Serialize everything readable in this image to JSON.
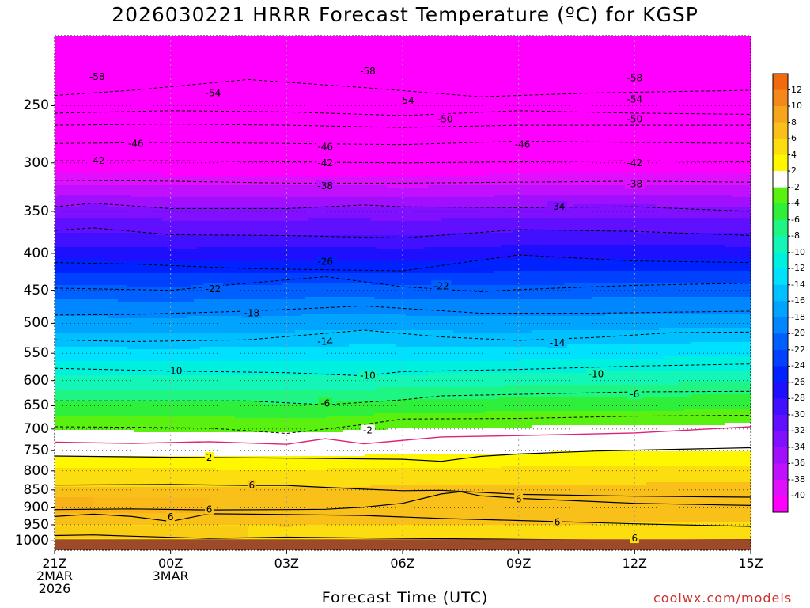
{
  "title": "2026030221 HRRR Forecast Temperature (ºC) for KGSP",
  "xlabel": "Forecast Time (UTC)",
  "credit": "coolwx.com/models",
  "colors": {
    "ground": "#9c4a2a",
    "contour": "#000000",
    "freezing_line": "#e0207a"
  },
  "chart_data": {
    "type": "heatmap",
    "x_ticks": [
      {
        "lines": [
          "21Z",
          "2MAR",
          "2026"
        ]
      },
      {
        "lines": [
          "00Z",
          "3MAR"
        ]
      },
      {
        "lines": [
          "03Z"
        ]
      },
      {
        "lines": [
          "06Z"
        ]
      },
      {
        "lines": [
          "09Z"
        ]
      },
      {
        "lines": [
          "12Z"
        ]
      },
      {
        "lines": [
          "15Z"
        ]
      }
    ],
    "x_hours": [
      0,
      3,
      6,
      9,
      12,
      15,
      18
    ],
    "y_ticks": [
      250,
      300,
      350,
      400,
      450,
      500,
      550,
      600,
      650,
      700,
      750,
      800,
      850,
      900,
      950,
      1000
    ],
    "y_range_hpa": [
      200,
      1030
    ],
    "surface_pressure_hpa": 995,
    "colorbar_labels": [
      "12",
      "10",
      "8",
      "6",
      "4",
      "2",
      "-2",
      "-4",
      "-6",
      "-8",
      "-10",
      "-12",
      "-14",
      "-16",
      "-18",
      "-20",
      "-22",
      "-24",
      "-26",
      "-28",
      "-30",
      "-32",
      "-34",
      "-36",
      "-38",
      "-40"
    ],
    "color_levels": [
      {
        "min": 12,
        "color": "#f26a10"
      },
      {
        "min": 10,
        "color": "#f5881a"
      },
      {
        "min": 8,
        "color": "#f7a51a"
      },
      {
        "min": 6,
        "color": "#f9c01a"
      },
      {
        "min": 4,
        "color": "#fbdd10"
      },
      {
        "min": 2,
        "color": "#fff700"
      },
      {
        "min": -2,
        "color": "#ffffff"
      },
      {
        "min": -4,
        "color": "#5af010"
      },
      {
        "min": -6,
        "color": "#2ef03a"
      },
      {
        "min": -8,
        "color": "#1ef582"
      },
      {
        "min": -10,
        "color": "#14f5b8"
      },
      {
        "min": -12,
        "color": "#00f0e0"
      },
      {
        "min": -14,
        "color": "#00e0ff"
      },
      {
        "min": -16,
        "color": "#00c0ff"
      },
      {
        "min": -18,
        "color": "#00a4ff"
      },
      {
        "min": -20,
        "color": "#0086ff"
      },
      {
        "min": -22,
        "color": "#0060ff"
      },
      {
        "min": -24,
        "color": "#0040ff"
      },
      {
        "min": -26,
        "color": "#0022ff"
      },
      {
        "min": -28,
        "color": "#1e10ff"
      },
      {
        "min": -30,
        "color": "#4010ff"
      },
      {
        "min": -32,
        "color": "#6010ff"
      },
      {
        "min": -34,
        "color": "#8010ff"
      },
      {
        "min": -36,
        "color": "#a010ff"
      },
      {
        "min": -38,
        "color": "#c010ff"
      },
      {
        "min": -40,
        "color": "#e010ff"
      },
      {
        "min": -999,
        "color": "#ff00ff"
      }
    ],
    "contours": [
      {
        "value": -58,
        "points": [
          [
            0,
            242
          ],
          [
            2,
            238
          ],
          [
            5,
            230
          ],
          [
            8,
            236
          ],
          [
            11,
            243
          ],
          [
            14,
            240
          ],
          [
            18,
            238
          ]
        ]
      },
      {
        "value": -54,
        "points": [
          [
            0,
            256
          ],
          [
            3,
            254
          ],
          [
            6,
            255
          ],
          [
            9,
            258
          ],
          [
            12,
            254
          ],
          [
            15,
            256
          ],
          [
            18,
            257
          ]
        ]
      },
      {
        "value": -50,
        "points": [
          [
            0,
            266
          ],
          [
            3,
            265
          ],
          [
            6,
            266
          ],
          [
            9,
            268
          ],
          [
            12,
            266
          ],
          [
            15,
            266
          ],
          [
            18,
            266
          ]
        ]
      },
      {
        "value": -46,
        "points": [
          [
            0,
            282
          ],
          [
            3,
            281
          ],
          [
            6,
            282
          ],
          [
            9,
            283
          ],
          [
            12,
            280
          ],
          [
            15,
            281
          ],
          [
            18,
            282
          ]
        ]
      },
      {
        "value": -42,
        "points": [
          [
            0,
            298
          ],
          [
            3,
            298
          ],
          [
            6,
            299
          ],
          [
            9,
            300
          ],
          [
            12,
            299
          ],
          [
            15,
            298
          ],
          [
            18,
            299
          ]
        ]
      },
      {
        "value": -38,
        "points": [
          [
            0,
            317
          ],
          [
            3,
            318
          ],
          [
            6,
            320
          ],
          [
            9,
            320
          ],
          [
            12,
            319
          ],
          [
            15,
            318
          ],
          [
            18,
            319
          ]
        ]
      },
      {
        "value": -34,
        "points": [
          [
            0,
            345
          ],
          [
            1,
            341
          ],
          [
            3,
            347
          ],
          [
            6,
            347
          ],
          [
            8,
            343
          ],
          [
            9,
            345
          ],
          [
            12,
            346
          ],
          [
            15,
            345
          ],
          [
            18,
            350
          ]
        ]
      },
      {
        "value": -30,
        "points": [
          [
            0,
            372
          ],
          [
            1,
            369
          ],
          [
            3,
            377
          ],
          [
            6,
            378
          ],
          [
            9,
            381
          ],
          [
            12,
            371
          ],
          [
            15,
            373
          ],
          [
            18,
            378
          ]
        ]
      },
      {
        "value": -26,
        "points": [
          [
            0,
            412
          ],
          [
            2,
            414
          ],
          [
            5,
            420
          ],
          [
            9,
            423
          ],
          [
            12,
            402
          ],
          [
            15,
            410
          ],
          [
            18,
            412
          ]
        ]
      },
      {
        "value": -22,
        "points": [
          [
            0,
            447
          ],
          [
            3,
            450
          ],
          [
            5,
            440
          ],
          [
            7,
            431
          ],
          [
            9,
            445
          ],
          [
            11,
            452
          ],
          [
            12,
            449
          ],
          [
            15,
            443
          ],
          [
            18,
            440
          ]
        ]
      },
      {
        "value": -18,
        "points": [
          [
            0,
            487
          ],
          [
            2,
            486
          ],
          [
            5,
            481
          ],
          [
            8,
            473
          ],
          [
            11,
            484
          ],
          [
            14,
            484
          ],
          [
            18,
            481
          ]
        ]
      },
      {
        "value": -14,
        "points": [
          [
            0,
            527
          ],
          [
            2,
            530
          ],
          [
            5,
            527
          ],
          [
            8,
            511
          ],
          [
            10,
            522
          ],
          [
            12,
            528
          ],
          [
            14,
            523
          ],
          [
            16,
            515
          ],
          [
            18,
            514
          ]
        ]
      },
      {
        "value": -10,
        "points": [
          [
            0,
            577
          ],
          [
            3,
            582
          ],
          [
            6,
            585
          ],
          [
            8,
            591
          ],
          [
            9,
            583
          ],
          [
            12,
            579
          ],
          [
            15,
            573
          ],
          [
            18,
            569
          ]
        ]
      },
      {
        "value": -6,
        "points": [
          [
            0,
            640
          ],
          [
            3,
            640
          ],
          [
            5,
            640
          ],
          [
            7,
            648
          ],
          [
            9,
            638
          ],
          [
            10,
            630
          ],
          [
            12,
            627
          ],
          [
            15,
            622
          ],
          [
            18,
            621
          ]
        ]
      },
      {
        "value": -2,
        "points": [
          [
            0,
            695
          ],
          [
            2,
            696
          ],
          [
            4,
            698
          ],
          [
            6,
            710
          ],
          [
            8,
            690
          ],
          [
            9,
            678
          ],
          [
            12,
            677
          ],
          [
            15,
            672
          ],
          [
            18,
            670
          ]
        ]
      }
    ],
    "dashed_labels": [
      {
        "value": "-58",
        "x": 1.1,
        "p": 228
      },
      {
        "value": "-58",
        "x": 8.1,
        "p": 224
      },
      {
        "value": "-58",
        "x": 15.0,
        "p": 229
      },
      {
        "value": "-54",
        "x": 4.1,
        "p": 240
      },
      {
        "value": "-54",
        "x": 9.1,
        "p": 246
      },
      {
        "value": "-54",
        "x": 15.0,
        "p": 245
      },
      {
        "value": "-50",
        "x": 10.1,
        "p": 261
      },
      {
        "value": "-50",
        "x": 15.0,
        "p": 261
      },
      {
        "value": "-46",
        "x": 2.1,
        "p": 282
      },
      {
        "value": "-46",
        "x": 7.0,
        "p": 285
      },
      {
        "value": "-46",
        "x": 12.1,
        "p": 283
      },
      {
        "value": "-42",
        "x": 1.1,
        "p": 298
      },
      {
        "value": "-42",
        "x": 7.0,
        "p": 300
      },
      {
        "value": "-42",
        "x": 15.0,
        "p": 300
      },
      {
        "value": "-38",
        "x": 7.0,
        "p": 323
      },
      {
        "value": "-38",
        "x": 15.0,
        "p": 321
      },
      {
        "value": "-34",
        "x": 13.0,
        "p": 345
      },
      {
        "value": "-26",
        "x": 7.0,
        "p": 411
      },
      {
        "value": "-22",
        "x": 4.1,
        "p": 448
      },
      {
        "value": "-22",
        "x": 10.0,
        "p": 444
      },
      {
        "value": "-18",
        "x": 5.1,
        "p": 484
      },
      {
        "value": "-14",
        "x": 7.0,
        "p": 530
      },
      {
        "value": "-14",
        "x": 13.0,
        "p": 532
      },
      {
        "value": "-10",
        "x": 3.1,
        "p": 582
      },
      {
        "value": "-10",
        "x": 8.1,
        "p": 591
      },
      {
        "value": "-10",
        "x": 14.0,
        "p": 588
      },
      {
        "value": "-6",
        "x": 7.0,
        "p": 645
      },
      {
        "value": "-6",
        "x": 15.0,
        "p": 627
      },
      {
        "value": "-2",
        "x": 8.1,
        "p": 703
      }
    ],
    "solid_contours": [
      {
        "value": 2,
        "points": [
          [
            0,
            763
          ],
          [
            3,
            766
          ],
          [
            6,
            768
          ],
          [
            9,
            771
          ],
          [
            10,
            776
          ],
          [
            11,
            764
          ],
          [
            12,
            758
          ],
          [
            14,
            751
          ],
          [
            18,
            743
          ]
        ]
      },
      {
        "value": 6,
        "points": [
          [
            0,
            837
          ],
          [
            3,
            835
          ],
          [
            5,
            838
          ],
          [
            6,
            838
          ],
          [
            8,
            848
          ],
          [
            9,
            852
          ],
          [
            10,
            851
          ],
          [
            12,
            862
          ],
          [
            15,
            867
          ],
          [
            18,
            870
          ]
        ]
      },
      {
        "value": 6,
        "points": [
          [
            0,
            905
          ],
          [
            2,
            903
          ],
          [
            4,
            906
          ],
          [
            6,
            905
          ],
          [
            7,
            904
          ],
          [
            8,
            898
          ],
          [
            9,
            887
          ],
          [
            10,
            861
          ],
          [
            10.5,
            855
          ],
          [
            11,
            866
          ],
          [
            12,
            873
          ],
          [
            15,
            887
          ],
          [
            18,
            893
          ]
        ]
      },
      {
        "value": 6,
        "points": [
          [
            0,
            925
          ],
          [
            1,
            918
          ],
          [
            2,
            925
          ],
          [
            3,
            940
          ],
          [
            4,
            917
          ],
          [
            6,
            919
          ],
          [
            8,
            922
          ],
          [
            10,
            931
          ],
          [
            12,
            937
          ],
          [
            15,
            947
          ],
          [
            18,
            955
          ]
        ]
      },
      {
        "value": 6,
        "points": [
          [
            0,
            983
          ],
          [
            1,
            981
          ],
          [
            2,
            985
          ],
          [
            4,
            992
          ],
          [
            6,
            988
          ],
          [
            9,
            992
          ],
          [
            12,
            995
          ],
          [
            15,
            998
          ],
          [
            18,
            996
          ]
        ]
      }
    ],
    "solid_labels": [
      {
        "value": "2",
        "x": 4.0,
        "p": 767
      },
      {
        "value": "6",
        "x": 5.1,
        "p": 838
      },
      {
        "value": "6",
        "x": 4.0,
        "p": 905
      },
      {
        "value": "6",
        "x": 3.0,
        "p": 927
      },
      {
        "value": "6",
        "x": 12.0,
        "p": 875
      },
      {
        "value": "6",
        "x": 13.0,
        "p": 942
      },
      {
        "value": "6",
        "x": 15.0,
        "p": 992
      }
    ],
    "freezing_line": {
      "value": 0,
      "points": [
        [
          0,
          730
        ],
        [
          2,
          733
        ],
        [
          4,
          729
        ],
        [
          6,
          735
        ],
        [
          7,
          722
        ],
        [
          8,
          734
        ],
        [
          10,
          718
        ],
        [
          12,
          715
        ],
        [
          15,
          709
        ],
        [
          18,
          695
        ]
      ]
    },
    "profiles": [
      {
        "p": 200,
        "t": -63
      },
      {
        "p": 250,
        "t": -54
      },
      {
        "p": 300,
        "t": -42
      },
      {
        "p": 350,
        "t": -33
      },
      {
        "p": 400,
        "t": -27
      },
      {
        "p": 450,
        "t": -21
      },
      {
        "p": 500,
        "t": -17
      },
      {
        "p": 550,
        "t": -13
      },
      {
        "p": 600,
        "t": -9
      },
      {
        "p": 650,
        "t": -5
      },
      {
        "p": 700,
        "t": -2
      },
      {
        "p": 750,
        "t": 1.5
      },
      {
        "p": 800,
        "t": 4.5
      },
      {
        "p": 850,
        "t": 6.5
      },
      {
        "p": 900,
        "t": 8
      },
      {
        "p": 950,
        "t": 6
      },
      {
        "p": 1000,
        "t": 5
      }
    ]
  }
}
